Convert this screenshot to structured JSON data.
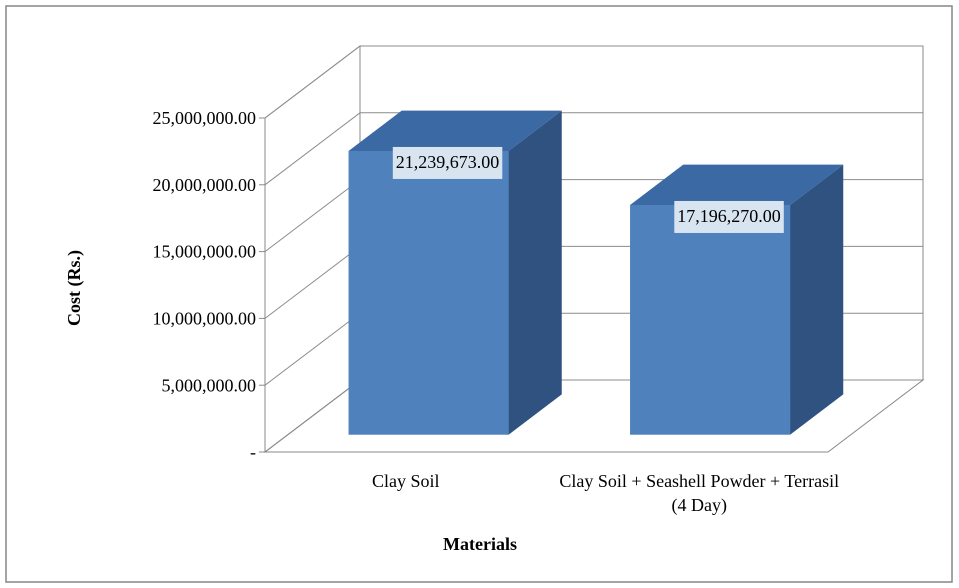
{
  "chart_data": {
    "type": "bar3d",
    "categories": [
      "Clay Soil",
      "Clay Soil + Seashell Powder + Terrasil (4 Day)"
    ],
    "values": [
      21239673,
      17196270
    ],
    "value_labels": [
      "21,239,673.00",
      "17,196,270.00"
    ],
    "color": "#4f81bd",
    "x_label": "Materials",
    "y_label": "Cost (Rs.)",
    "ylim": [
      0,
      25000000
    ],
    "yticks": [
      {
        "value": 0,
        "label": "-"
      },
      {
        "value": 5000000,
        "label": "5,000,000.00"
      },
      {
        "value": 10000000,
        "label": "10,000,000.00"
      },
      {
        "value": 15000000,
        "label": "15,000,000.00"
      },
      {
        "value": 20000000,
        "label": "20,000,000.00"
      },
      {
        "value": 25000000,
        "label": "25,000,000.00"
      }
    ],
    "grid": true
  }
}
